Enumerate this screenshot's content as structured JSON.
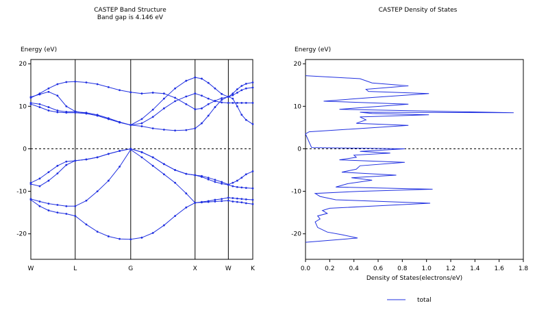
{
  "chart_data": [
    {
      "type": "line",
      "title": "CASTEP Band Structure",
      "subtitle": "Band gap is 4.146 eV",
      "ylabel": "Energy (eV)",
      "ylim": [
        -26,
        21
      ],
      "yticks": [
        20,
        10,
        0,
        -10,
        -20
      ],
      "kpoints": [
        {
          "label": "W",
          "x": 0.0
        },
        {
          "label": "L",
          "x": 0.2
        },
        {
          "label": "G",
          "x": 0.45
        },
        {
          "label": "X",
          "x": 0.74
        },
        {
          "label": "W",
          "x": 0.89
        },
        {
          "label": "K",
          "x": 1.0
        }
      ],
      "fermi_level": 0,
      "series": [
        {
          "x": [
            0,
            0.04,
            0.08,
            0.12,
            0.16,
            0.2,
            0.25,
            0.3,
            0.35,
            0.4,
            0.45,
            0.5,
            0.55,
            0.6,
            0.65,
            0.7,
            0.74,
            0.77,
            0.8,
            0.83,
            0.86,
            0.89,
            0.91,
            0.93,
            0.95,
            0.97,
            1.0
          ],
          "y": [
            -11.8,
            -12.4,
            -12.9,
            -13.2,
            -13.5,
            -13.5,
            -12.2,
            -10.0,
            -7.5,
            -4.2,
            -0.2,
            -2.0,
            -4.0,
            -6.0,
            -8.0,
            -10.5,
            -12.7,
            -12.5,
            -12.3,
            -12.0,
            -11.8,
            -11.5,
            -11.6,
            -11.7,
            -11.8,
            -11.9,
            -12.0
          ]
        },
        {
          "x": [
            0,
            0.04,
            0.08,
            0.12,
            0.16,
            0.2,
            0.25,
            0.3,
            0.35,
            0.4,
            0.45,
            0.5,
            0.55,
            0.6,
            0.65,
            0.7,
            0.74,
            0.77,
            0.8,
            0.83,
            0.86,
            0.89,
            0.91,
            0.93,
            0.95,
            0.97,
            1.0
          ],
          "y": [
            -12.0,
            -13.5,
            -14.5,
            -15.0,
            -15.3,
            -15.8,
            -17.8,
            -19.5,
            -20.6,
            -21.2,
            -21.3,
            -20.9,
            -19.8,
            -18.0,
            -15.8,
            -13.8,
            -12.7,
            -12.6,
            -12.5,
            -12.4,
            -12.3,
            -12.2,
            -12.4,
            -12.5,
            -12.6,
            -12.8,
            -13.0
          ]
        },
        {
          "x": [
            0,
            0.04,
            0.08,
            0.12,
            0.16,
            0.2,
            0.25,
            0.3,
            0.35,
            0.4,
            0.45,
            0.5,
            0.55,
            0.6,
            0.65,
            0.7,
            0.74,
            0.77,
            0.8,
            0.83,
            0.86,
            0.89,
            0.91,
            0.93,
            0.95,
            0.97,
            1.0
          ],
          "y": [
            -8.0,
            -7.0,
            -5.5,
            -4.0,
            -3.0,
            -2.8,
            -2.5,
            -2.0,
            -1.2,
            -0.5,
            0.0,
            -0.8,
            -2.0,
            -3.6,
            -5.0,
            -5.9,
            -6.2,
            -6.4,
            -6.8,
            -7.3,
            -7.8,
            -8.4,
            -8.0,
            -7.5,
            -6.8,
            -6.0,
            -5.3
          ]
        },
        {
          "x": [
            0,
            0.04,
            0.08,
            0.12,
            0.16,
            0.2,
            0.25,
            0.3,
            0.35,
            0.4,
            0.45,
            0.5,
            0.55,
            0.6,
            0.65,
            0.7,
            0.74,
            0.77,
            0.8,
            0.83,
            0.86,
            0.89,
            0.91,
            0.93,
            0.95,
            0.97,
            1.0
          ],
          "y": [
            -8.3,
            -8.8,
            -7.5,
            -5.8,
            -3.8,
            -2.8,
            -2.5,
            -2.0,
            -1.2,
            -0.5,
            0.0,
            -0.8,
            -2.0,
            -3.6,
            -5.0,
            -5.9,
            -6.2,
            -6.6,
            -7.2,
            -7.8,
            -8.2,
            -8.5,
            -8.8,
            -9.0,
            -9.1,
            -9.2,
            -9.3
          ]
        },
        {
          "x": [
            0,
            0.04,
            0.08,
            0.12,
            0.16,
            0.2,
            0.25,
            0.3,
            0.35,
            0.4,
            0.45,
            0.5,
            0.55,
            0.6,
            0.65,
            0.7,
            0.74,
            0.77,
            0.8,
            0.83,
            0.86,
            0.89,
            0.91,
            0.93,
            0.95,
            0.97,
            1.0
          ],
          "y": [
            10.5,
            9.8,
            9.0,
            8.6,
            8.5,
            8.5,
            8.3,
            7.8,
            7.0,
            6.2,
            5.6,
            5.3,
            4.8,
            4.5,
            4.3,
            4.4,
            4.8,
            6.0,
            7.8,
            9.8,
            11.5,
            12.3,
            11.8,
            10.0,
            8.0,
            6.8,
            5.8
          ]
        },
        {
          "x": [
            0,
            0.04,
            0.08,
            0.12,
            0.16,
            0.2,
            0.25,
            0.3,
            0.35,
            0.4,
            0.45,
            0.5,
            0.55,
            0.6,
            0.65,
            0.7,
            0.74,
            0.77,
            0.8,
            0.83,
            0.86,
            0.89,
            0.91,
            0.93,
            0.95,
            0.97,
            1.0
          ],
          "y": [
            10.8,
            10.5,
            9.8,
            9.0,
            8.7,
            8.7,
            8.5,
            8.0,
            7.2,
            6.3,
            5.6,
            6.0,
            7.5,
            9.5,
            11.2,
            12.3,
            13.0,
            12.5,
            11.8,
            11.2,
            10.9,
            10.8,
            10.8,
            10.8,
            10.8,
            10.8,
            10.8
          ]
        },
        {
          "x": [
            0,
            0.04,
            0.08,
            0.12,
            0.16,
            0.2,
            0.25,
            0.3,
            0.35,
            0.4,
            0.45,
            0.5,
            0.55,
            0.6,
            0.65,
            0.7,
            0.74,
            0.77,
            0.8,
            0.83,
            0.86,
            0.89,
            0.91,
            0.93,
            0.95,
            0.97,
            1.0
          ],
          "y": [
            12.2,
            12.8,
            13.4,
            12.5,
            10.0,
            8.8,
            8.3,
            7.8,
            7.0,
            6.2,
            5.6,
            7.0,
            9.2,
            11.8,
            14.2,
            16.0,
            16.8,
            16.5,
            15.5,
            14.2,
            12.9,
            12.2,
            13.0,
            14.0,
            14.8,
            15.3,
            15.6
          ]
        },
        {
          "x": [
            0,
            0.04,
            0.08,
            0.12,
            0.16,
            0.2,
            0.25,
            0.3,
            0.35,
            0.4,
            0.45,
            0.5,
            0.55,
            0.6,
            0.65,
            0.7,
            0.74,
            0.77,
            0.8,
            0.83,
            0.86,
            0.89,
            0.91,
            0.93,
            0.95,
            0.97,
            1.0
          ],
          "y": [
            12.0,
            13.0,
            14.2,
            15.2,
            15.7,
            15.8,
            15.6,
            15.2,
            14.5,
            13.8,
            13.3,
            13.0,
            13.2,
            13.0,
            12.0,
            10.5,
            9.3,
            9.5,
            10.5,
            11.3,
            11.9,
            12.2,
            12.6,
            13.2,
            13.8,
            14.2,
            14.4
          ]
        }
      ]
    },
    {
      "type": "line",
      "title": "CASTEP Density of States",
      "ylabel": "Energy (eV)",
      "xlabel": "Density of States(electrons/eV)",
      "xlim": [
        0,
        1.8
      ],
      "xticks": [
        0.0,
        0.2,
        0.4,
        0.6,
        0.8,
        1.0,
        1.2,
        1.4,
        1.6,
        1.8
      ],
      "ylim": [
        -26,
        21
      ],
      "yticks": [
        20,
        10,
        0,
        -10,
        -20
      ],
      "fermi_level": 0,
      "legend": "bottom-center",
      "series": [
        {
          "name": "total",
          "dos": [
            0.0,
            0.43,
            0.3,
            0.18,
            0.1,
            0.08,
            0.12,
            0.1,
            0.18,
            0.14,
            0.2,
            0.55,
            1.03,
            0.25,
            0.12,
            0.08,
            0.45,
            1.05,
            0.25,
            0.35,
            0.55,
            0.38,
            0.75,
            0.3,
            0.42,
            0.45,
            0.82,
            0.28,
            0.42,
            0.4,
            0.7,
            0.45,
            0.82,
            0.05,
            0.0,
            0.03,
            0.85,
            0.42,
            0.5,
            0.45,
            1.02,
            0.55,
            0.45,
            1.72,
            0.28,
            0.85,
            0.15,
            0.52,
            1.02,
            0.52,
            0.5,
            0.85,
            0.55,
            0.45,
            0.0
          ],
          "energy": [
            -22.0,
            -21.0,
            -20.2,
            -19.6,
            -18.5,
            -17.2,
            -16.5,
            -15.8,
            -15.2,
            -14.5,
            -14.0,
            -13.5,
            -12.8,
            -12.0,
            -11.2,
            -10.5,
            -10.0,
            -9.5,
            -9.0,
            -8.2,
            -7.4,
            -6.8,
            -6.2,
            -5.5,
            -4.8,
            -4.0,
            -3.2,
            -2.6,
            -2.0,
            -1.5,
            -1.0,
            -0.6,
            0.0,
            0.3,
            3.5,
            4.0,
            5.5,
            6.0,
            6.8,
            7.5,
            8.0,
            8.3,
            8.6,
            8.5,
            9.3,
            10.5,
            11.2,
            12.0,
            13.0,
            13.5,
            14.0,
            14.8,
            15.5,
            16.5,
            17.2
          ]
        }
      ]
    }
  ]
}
